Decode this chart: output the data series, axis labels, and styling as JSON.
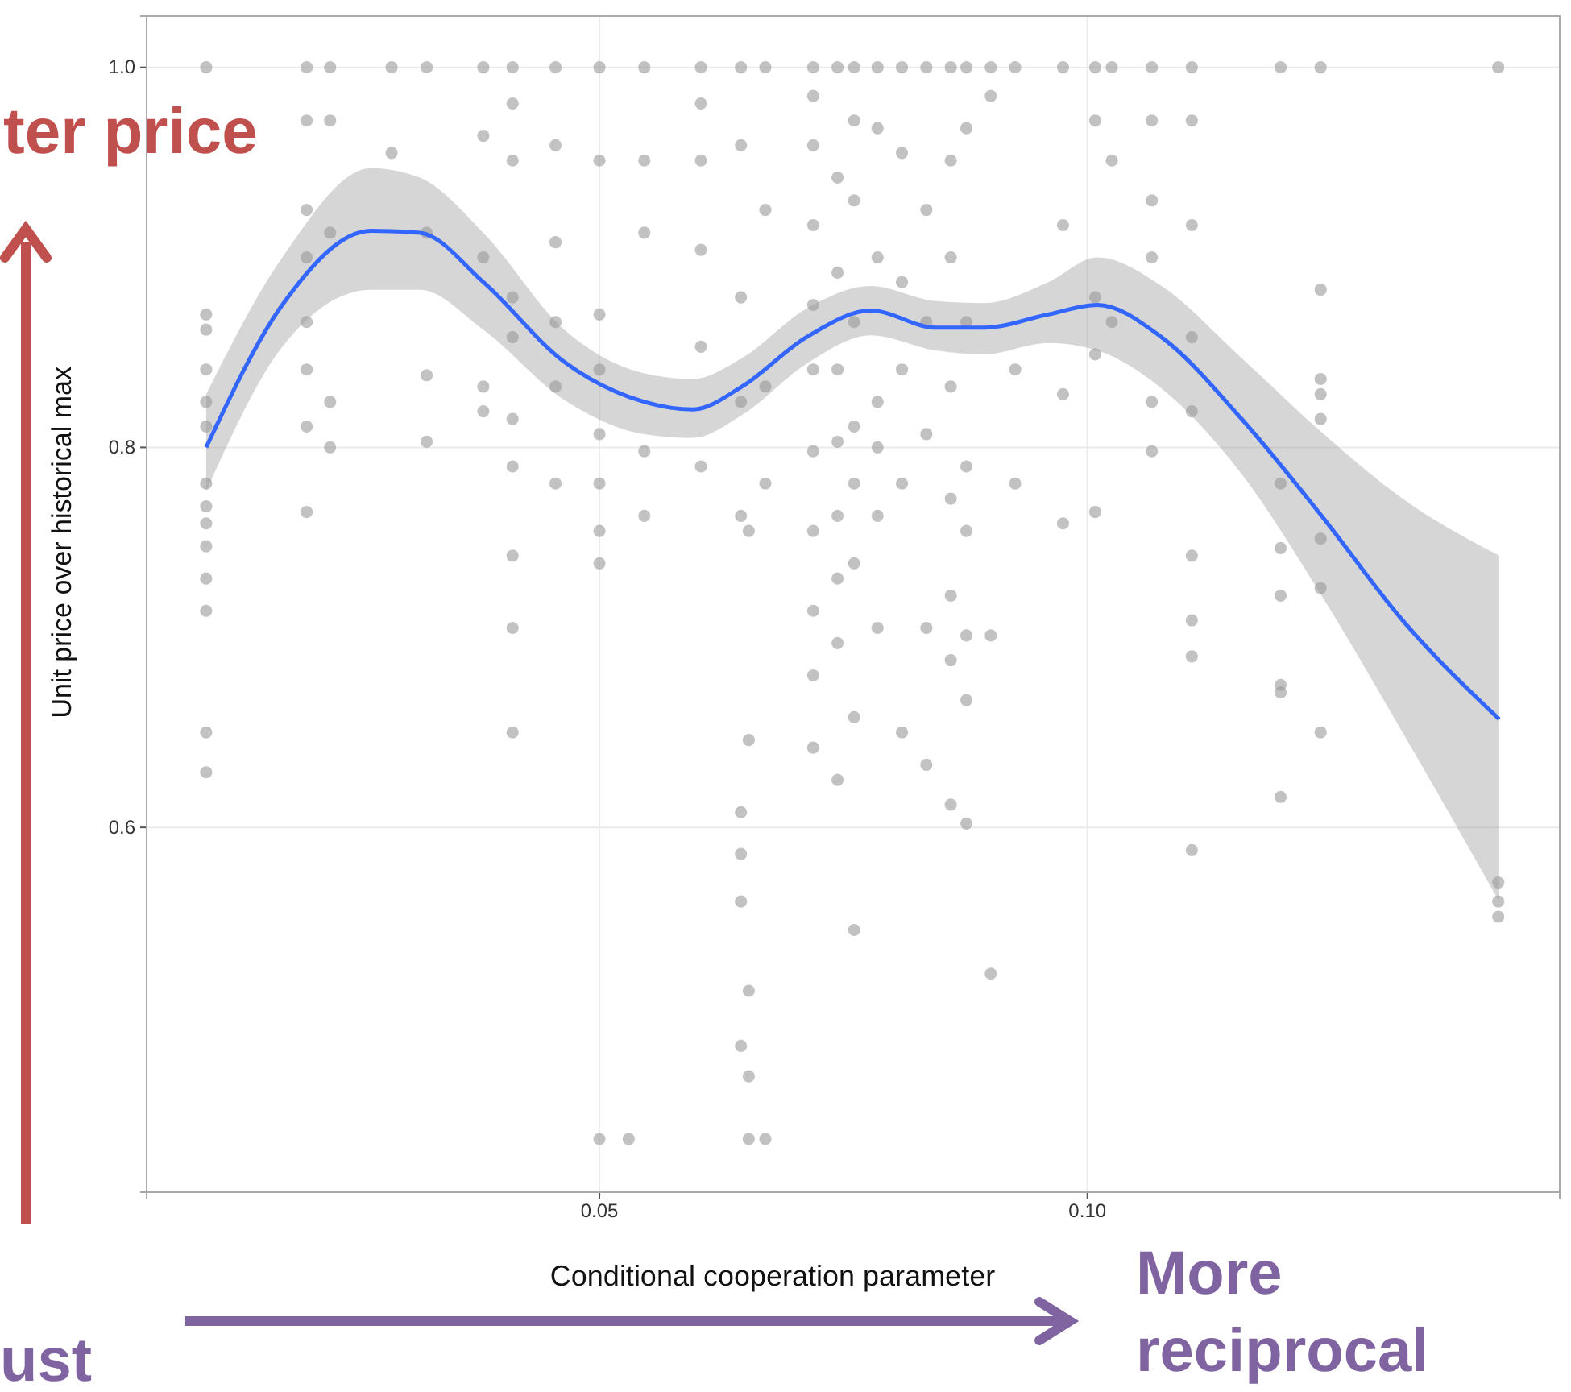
{
  "chart_data": {
    "type": "scatter",
    "xlabel": "Conditional cooperation parameter",
    "ylabel": "Unit price over historical max",
    "xlim": [
      0.0036,
      0.1484
    ],
    "ylim": [
      0.408,
      1.027
    ],
    "xticks": [
      0.05,
      {
        "value": 0.1,
        "label": "0.10"
      }
    ],
    "yticks": [
      {
        "value": 0.6,
        "label": "0.6"
      },
      {
        "value": 0.8,
        "label": "0.8"
      },
      {
        "value": 1.0,
        "label": "1.0"
      }
    ],
    "grid": true,
    "annotations": [
      "ter price",
      "ust",
      "More reciprocal"
    ],
    "series": [
      {
        "color": "#999999",
        "marker": "circle",
        "x": [
          0.0097,
          0.0097,
          0.0097,
          0.0097,
          0.0097,
          0.0097,
          0.0097,
          0.0097,
          0.0097,
          0.0097,
          0.0097,
          0.0097,
          0.0097,
          0.0097,
          0.02,
          0.02,
          0.02,
          0.02,
          0.02,
          0.02,
          0.02,
          0.02,
          0.0224,
          0.0224,
          0.0224,
          0.0224,
          0.0224,
          0.0287,
          0.0287,
          0.0323,
          0.0323,
          0.0323,
          0.0323,
          0.0381,
          0.0381,
          0.0381,
          0.0381,
          0.0381,
          0.0411,
          0.0411,
          0.0411,
          0.0411,
          0.0411,
          0.0411,
          0.0411,
          0.0411,
          0.0411,
          0.0411,
          0.0455,
          0.0455,
          0.0455,
          0.0455,
          0.0455,
          0.0455,
          0.05,
          0.05,
          0.05,
          0.05,
          0.05,
          0.05,
          0.05,
          0.05,
          0.05,
          0.053,
          0.0546,
          0.0546,
          0.0546,
          0.0546,
          0.0546,
          0.0604,
          0.0604,
          0.0604,
          0.0604,
          0.0604,
          0.0604,
          0.0645,
          0.0645,
          0.0645,
          0.0645,
          0.0645,
          0.0645,
          0.0645,
          0.0645,
          0.0645,
          0.0653,
          0.0653,
          0.0653,
          0.0653,
          0.0653,
          0.067,
          0.067,
          0.067,
          0.067,
          0.067,
          0.0719,
          0.0719,
          0.0719,
          0.0719,
          0.0719,
          0.0719,
          0.0719,
          0.0719,
          0.0719,
          0.0719,
          0.0719,
          0.0744,
          0.0744,
          0.0744,
          0.0744,
          0.0744,
          0.0744,
          0.0744,
          0.0744,
          0.0744,
          0.0761,
          0.0761,
          0.0761,
          0.0761,
          0.0761,
          0.0761,
          0.0761,
          0.0761,
          0.0761,
          0.0785,
          0.0785,
          0.0785,
          0.0785,
          0.0785,
          0.0785,
          0.0785,
          0.081,
          0.081,
          0.081,
          0.081,
          0.081,
          0.081,
          0.0835,
          0.0835,
          0.0835,
          0.0835,
          0.0835,
          0.0835,
          0.086,
          0.086,
          0.086,
          0.086,
          0.086,
          0.086,
          0.086,
          0.086,
          0.0876,
          0.0876,
          0.0876,
          0.0876,
          0.0876,
          0.0876,
          0.0876,
          0.0876,
          0.0901,
          0.0901,
          0.0901,
          0.0901,
          0.0926,
          0.0926,
          0.0926,
          0.0975,
          0.0975,
          0.0975,
          0.0975,
          0.1008,
          0.1008,
          0.1008,
          0.1008,
          0.1008,
          0.1025,
          0.1025,
          0.1025,
          0.1066,
          0.1066,
          0.1066,
          0.1066,
          0.1066,
          0.1066,
          0.1107,
          0.1107,
          0.1107,
          0.1107,
          0.1107,
          0.1107,
          0.1107,
          0.1107,
          0.1107,
          0.1198,
          0.1198,
          0.1198,
          0.1198,
          0.1198,
          0.1198,
          0.1198,
          0.1239,
          0.1239,
          0.1239,
          0.1239,
          0.1239,
          0.1239,
          0.1239,
          0.1239,
          0.1421,
          0.1421,
          0.1421,
          0.1421
        ],
        "values": [
          1.0,
          0.87,
          0.862,
          0.841,
          0.824,
          0.811,
          0.781,
          0.769,
          0.76,
          0.748,
          0.731,
          0.714,
          0.65,
          0.629,
          1.0,
          0.972,
          0.925,
          0.9,
          0.866,
          0.841,
          0.811,
          0.766,
          1.0,
          0.972,
          0.913,
          0.824,
          0.8,
          1.0,
          0.955,
          1.0,
          0.913,
          0.838,
          0.803,
          1.0,
          0.964,
          0.9,
          0.832,
          0.819,
          1.0,
          0.981,
          0.951,
          0.879,
          0.858,
          0.815,
          0.79,
          0.743,
          0.705,
          0.65,
          1.0,
          0.959,
          0.908,
          0.866,
          0.832,
          0.781,
          1.0,
          0.951,
          0.87,
          0.841,
          0.807,
          0.781,
          0.756,
          0.739,
          0.436,
          0.436,
          1.0,
          0.951,
          0.913,
          0.798,
          0.764,
          1.0,
          0.981,
          0.951,
          0.904,
          0.853,
          0.79,
          1.0,
          0.959,
          0.879,
          0.824,
          0.764,
          0.608,
          0.586,
          0.561,
          0.485,
          0.756,
          0.646,
          0.514,
          0.469,
          0.436,
          1.0,
          0.925,
          0.832,
          0.781,
          0.436,
          1.0,
          0.985,
          0.959,
          0.917,
          0.875,
          0.841,
          0.798,
          0.756,
          0.714,
          0.68,
          0.642,
          1.0,
          0.942,
          0.892,
          0.841,
          0.803,
          0.764,
          0.731,
          0.697,
          0.625,
          1.0,
          0.972,
          0.93,
          0.866,
          0.811,
          0.781,
          0.739,
          0.658,
          0.546,
          1.0,
          0.968,
          0.9,
          0.824,
          0.8,
          0.764,
          0.705,
          1.0,
          0.955,
          0.887,
          0.841,
          0.781,
          0.65,
          1.0,
          0.925,
          0.866,
          0.807,
          0.705,
          0.633,
          1.0,
          0.951,
          0.9,
          0.832,
          0.773,
          0.722,
          0.688,
          0.612,
          1.0,
          0.968,
          0.866,
          0.79,
          0.756,
          0.701,
          0.667,
          0.602,
          1.0,
          0.985,
          0.701,
          0.523,
          1.0,
          0.841,
          0.781,
          1.0,
          0.917,
          0.828,
          0.76,
          1.0,
          0.972,
          0.879,
          0.849,
          0.766,
          1.0,
          0.951,
          0.866,
          1.0,
          0.972,
          0.93,
          0.9,
          0.824,
          0.798,
          1.0,
          0.972,
          0.917,
          0.858,
          0.819,
          0.743,
          0.709,
          0.69,
          0.588,
          1.0,
          0.781,
          0.747,
          0.722,
          0.675,
          0.671,
          0.616,
          1.0,
          0.883,
          0.836,
          0.828,
          0.815,
          0.752,
          0.726,
          0.65,
          1.0,
          0.571,
          0.561,
          0.553
        ]
      },
      {
        "type": "line",
        "color": "#3366ff",
        "marker": "none",
        "x": [
          0.0097,
          0.0175,
          0.0266,
          0.0316,
          0.0381,
          0.0464,
          0.0546,
          0.0596,
          0.0646,
          0.0712,
          0.0778,
          0.0845,
          0.0894,
          0.096,
          0.101,
          0.1076,
          0.1158,
          0.124,
          0.1323,
          0.1422
        ],
        "values": [
          0.8,
          0.875,
          0.914,
          0.913,
          0.887,
          0.845,
          0.824,
          0.82,
          0.832,
          0.858,
          0.872,
          0.863,
          0.863,
          0.87,
          0.875,
          0.858,
          0.815,
          0.764,
          0.709,
          0.657
        ],
        "upper": [
          0.828,
          0.9,
          0.947,
          0.942,
          0.913,
          0.862,
          0.839,
          0.836,
          0.847,
          0.873,
          0.885,
          0.877,
          0.876,
          0.887,
          0.9,
          0.885,
          0.847,
          0.808,
          0.773,
          0.743
        ],
        "lower": [
          0.777,
          0.853,
          0.883,
          0.883,
          0.862,
          0.825,
          0.807,
          0.805,
          0.817,
          0.844,
          0.859,
          0.851,
          0.849,
          0.855,
          0.851,
          0.831,
          0.786,
          0.722,
          0.65,
          0.561
        ]
      }
    ]
  }
}
